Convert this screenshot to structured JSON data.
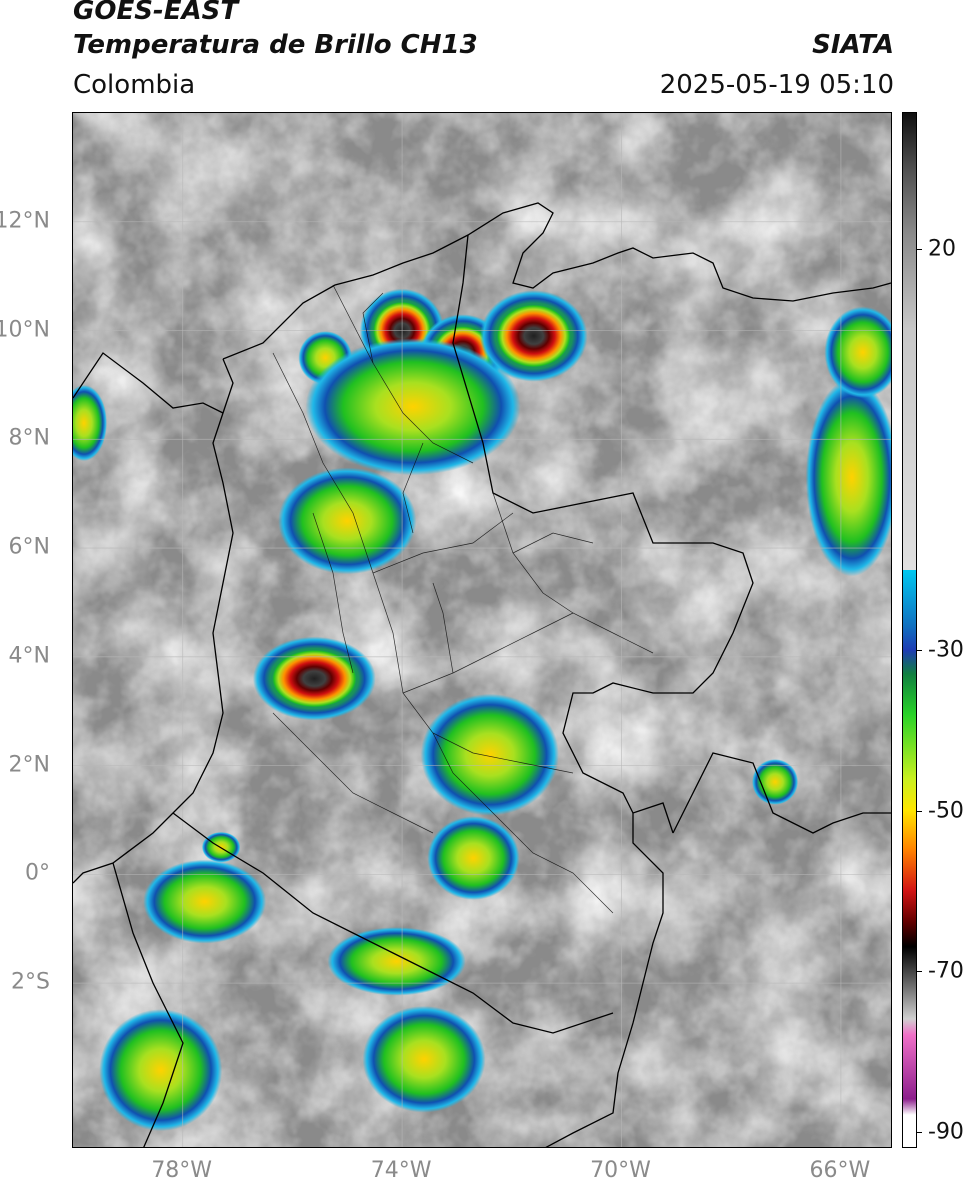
{
  "header": {
    "title_line1": "GOES-EAST",
    "title_line2": "Temperatura de Brillo CH13",
    "organization": "SIATA",
    "region": "Colombia",
    "timestamp": "2025-05-19 05:10"
  },
  "axes": {
    "lat_labels": [
      {
        "label": "12°N",
        "lat": 12
      },
      {
        "label": "10°N",
        "lat": 10
      },
      {
        "label": "8°N",
        "lat": 8
      },
      {
        "label": "6°N",
        "lat": 6
      },
      {
        "label": "4°N",
        "lat": 4
      },
      {
        "label": "2°N",
        "lat": 2
      },
      {
        "label": "0°",
        "lat": 0
      },
      {
        "label": "2°S",
        "lat": -2
      }
    ],
    "lon_labels": [
      {
        "label": "78°W",
        "lon": -78
      },
      {
        "label": "74°W",
        "lon": -74
      },
      {
        "label": "70°W",
        "lon": -70
      },
      {
        "label": "66°W",
        "lon": -66
      }
    ],
    "lat_range": [
      -5.05,
      14.0
    ],
    "lon_range": [
      -80.0,
      -65.05
    ]
  },
  "colorbar": {
    "min": -92,
    "max": 37,
    "ticks": [
      {
        "label": "20",
        "value": 20
      },
      {
        "label": "-30",
        "value": -30
      },
      {
        "label": "-50",
        "value": -50
      },
      {
        "label": "-70",
        "value": -70
      },
      {
        "label": "-90",
        "value": -90
      }
    ],
    "colors": {
      "warm_gray": "#e0e0e0",
      "cyan": "#00c8f0",
      "blue": "#1e3cb4",
      "green": "#28d228",
      "yellow": "#ffe600",
      "red": "#d21414",
      "black": "#000000",
      "pink": "#f070c8",
      "purple": "#8c1e8c"
    }
  },
  "storms": [
    {
      "lon": -74.0,
      "lat": 10.0,
      "rx": 0.55,
      "ry": 0.55,
      "core": true
    },
    {
      "lon": -72.9,
      "lat": 9.6,
      "rx": 0.55,
      "ry": 0.5,
      "core": true
    },
    {
      "lon": -71.6,
      "lat": 9.9,
      "rx": 0.7,
      "ry": 0.6,
      "core": true
    },
    {
      "lon": -75.4,
      "lat": 9.5,
      "rx": 0.35,
      "ry": 0.35,
      "core": false
    },
    {
      "lon": -75.6,
      "lat": 3.6,
      "rx": 0.8,
      "ry": 0.55,
      "core": true
    },
    {
      "lon": -72.4,
      "lat": 2.2,
      "rx": 0.9,
      "ry": 0.8,
      "core": false
    },
    {
      "lon": -75.0,
      "lat": 6.5,
      "rx": 0.9,
      "ry": 0.7,
      "core": false
    },
    {
      "lon": -74.1,
      "lat": -1.6,
      "rx": 0.9,
      "ry": 0.45,
      "core": false
    },
    {
      "lon": -73.6,
      "lat": -3.4,
      "rx": 0.8,
      "ry": 0.7,
      "core": false
    },
    {
      "lon": -78.4,
      "lat": -3.6,
      "rx": 0.8,
      "ry": 0.8,
      "core": false
    },
    {
      "lon": -77.6,
      "lat": -0.5,
      "rx": 0.8,
      "ry": 0.55,
      "core": false
    },
    {
      "lon": -72.7,
      "lat": 0.3,
      "rx": 0.6,
      "ry": 0.55,
      "core": false
    },
    {
      "lon": -65.8,
      "lat": 7.3,
      "rx": 0.6,
      "ry": 1.3,
      "core": false
    },
    {
      "lon": -65.6,
      "lat": 9.6,
      "rx": 0.5,
      "ry": 0.6,
      "core": false
    },
    {
      "lon": -67.2,
      "lat": 1.7,
      "rx": 0.3,
      "ry": 0.3,
      "core": false
    },
    {
      "lon": -79.8,
      "lat": 8.3,
      "rx": 0.3,
      "ry": 0.5,
      "core": false
    },
    {
      "lon": -73.8,
      "lat": 8.6,
      "rx": 1.4,
      "ry": 0.9,
      "core": false
    },
    {
      "lon": -77.3,
      "lat": 0.5,
      "rx": 0.25,
      "ry": 0.2,
      "core": false
    }
  ]
}
